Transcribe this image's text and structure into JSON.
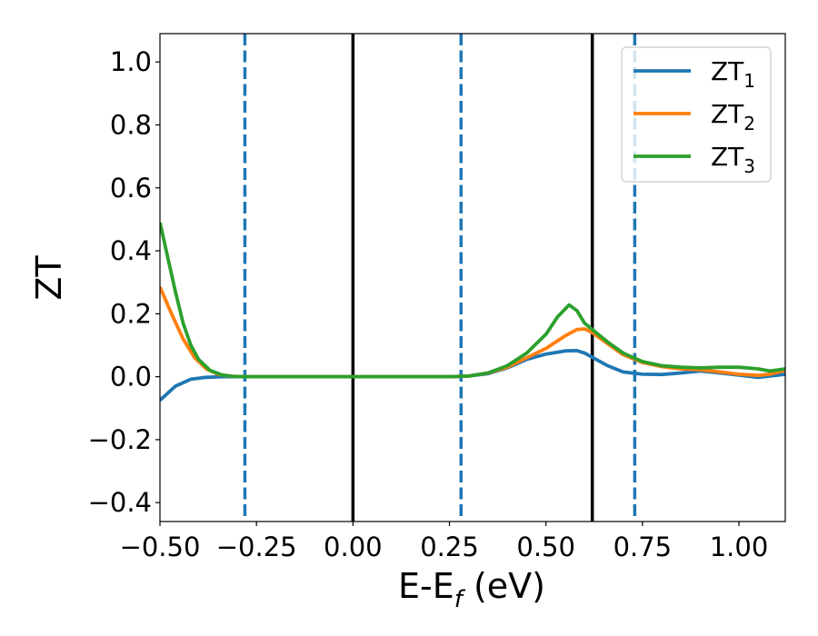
{
  "chart_data": {
    "type": "line",
    "xlabel": "E-E",
    "xlabel_sub": "f",
    "xlabel_unit": " (eV)",
    "ylabel": "ZT",
    "xlim": [
      -0.5,
      1.12
    ],
    "ylim": [
      -0.46,
      1.09
    ],
    "x_ticks": [
      -0.5,
      -0.25,
      0.0,
      0.25,
      0.5,
      0.75,
      1.0
    ],
    "x_tick_labels": [
      "−0.50",
      "−0.25",
      "0.00",
      "0.25",
      "0.50",
      "0.75",
      "1.00"
    ],
    "y_ticks": [
      -0.4,
      -0.2,
      0.0,
      0.2,
      0.4,
      0.6,
      0.8,
      1.0
    ],
    "y_tick_labels": [
      "−0.4",
      "−0.2",
      "0.0",
      "0.2",
      "0.4",
      "0.6",
      "0.8",
      "1.0"
    ],
    "grid": false,
    "legend_position": "top-right",
    "vertical_lines": [
      {
        "x": 0.0,
        "style": "solid",
        "color": "#000000"
      },
      {
        "x": 0.62,
        "style": "solid",
        "color": "#000000"
      },
      {
        "x": -0.28,
        "style": "dashed",
        "color": "#1f77b4"
      },
      {
        "x": 0.28,
        "style": "dashed",
        "color": "#1f77b4"
      },
      {
        "x": 0.73,
        "style": "dashed",
        "color": "#1f77b4"
      }
    ],
    "series": [
      {
        "name": "ZT",
        "subscript": "1",
        "color": "#1f77b4",
        "x": [
          -0.5,
          -0.46,
          -0.42,
          -0.38,
          -0.34,
          -0.3,
          -0.25,
          0.0,
          0.25,
          0.3,
          0.35,
          0.4,
          0.45,
          0.5,
          0.55,
          0.58,
          0.6,
          0.63,
          0.66,
          0.7,
          0.75,
          0.8,
          0.85,
          0.9,
          0.95,
          1.0,
          1.05,
          1.08,
          1.12
        ],
        "values": [
          -0.075,
          -0.03,
          -0.008,
          -0.002,
          0.0,
          0.0,
          0.0,
          0.0,
          0.0,
          0.002,
          0.01,
          0.028,
          0.055,
          0.072,
          0.082,
          0.083,
          0.075,
          0.055,
          0.035,
          0.015,
          0.008,
          0.007,
          0.012,
          0.018,
          0.012,
          0.005,
          -0.002,
          0.002,
          0.008
        ]
      },
      {
        "name": "ZT",
        "subscript": "2",
        "color": "#ff7f0e",
        "x": [
          -0.5,
          -0.47,
          -0.44,
          -0.41,
          -0.38,
          -0.35,
          -0.32,
          -0.28,
          -0.25,
          0.0,
          0.25,
          0.3,
          0.35,
          0.4,
          0.45,
          0.5,
          0.55,
          0.58,
          0.6,
          0.62,
          0.66,
          0.7,
          0.75,
          0.8,
          0.85,
          0.9,
          0.95,
          1.0,
          1.05,
          1.08,
          1.12
        ],
        "values": [
          0.285,
          0.2,
          0.12,
          0.06,
          0.025,
          0.008,
          0.002,
          0.0,
          0.0,
          0.0,
          0.0,
          0.002,
          0.012,
          0.03,
          0.06,
          0.09,
          0.13,
          0.15,
          0.152,
          0.14,
          0.105,
          0.07,
          0.045,
          0.032,
          0.025,
          0.022,
          0.015,
          0.008,
          0.004,
          0.008,
          0.02
        ]
      },
      {
        "name": "ZT",
        "subscript": "3",
        "color": "#2ca02c",
        "x": [
          -0.5,
          -0.48,
          -0.46,
          -0.44,
          -0.42,
          -0.4,
          -0.37,
          -0.34,
          -0.31,
          -0.28,
          -0.25,
          0.0,
          0.25,
          0.3,
          0.35,
          0.4,
          0.45,
          0.5,
          0.53,
          0.56,
          0.58,
          0.6,
          0.63,
          0.66,
          0.7,
          0.75,
          0.8,
          0.85,
          0.9,
          0.95,
          1.0,
          1.05,
          1.08,
          1.12
        ],
        "values": [
          0.49,
          0.38,
          0.27,
          0.17,
          0.1,
          0.055,
          0.02,
          0.006,
          0.001,
          0.0,
          0.0,
          0.0,
          0.0,
          0.002,
          0.012,
          0.035,
          0.075,
          0.135,
          0.19,
          0.228,
          0.21,
          0.17,
          0.14,
          0.11,
          0.075,
          0.048,
          0.035,
          0.03,
          0.028,
          0.03,
          0.03,
          0.025,
          0.018,
          0.025
        ]
      }
    ]
  }
}
